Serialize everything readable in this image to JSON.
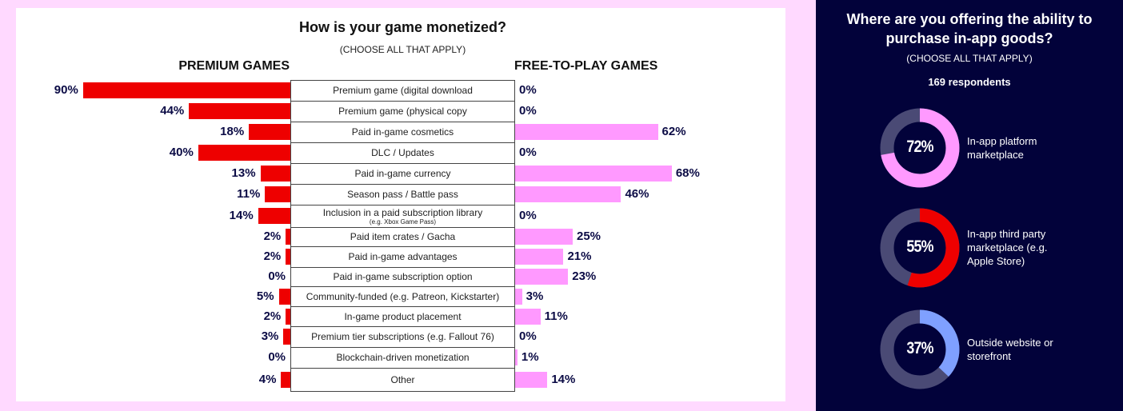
{
  "chart_data": [
    {
      "type": "bar",
      "title": "How is your game monetized?",
      "subtitle": "(CHOOSE ALL THAT APPLY)",
      "series": [
        {
          "name": "PREMIUM GAMES",
          "color": "#EE0000",
          "values": [
            90,
            44,
            18,
            40,
            13,
            11,
            14,
            2,
            2,
            0,
            5,
            2,
            3,
            0,
            4
          ],
          "labels": [
            "90%",
            "44%",
            "18%",
            "40%",
            "13%",
            "11%",
            "14%",
            "2%",
            "2%",
            "0%",
            "5%",
            "2%",
            "3%",
            "0%",
            "4%"
          ]
        },
        {
          "name": "FREE-TO-PLAY GAMES",
          "color": "#FF99FF",
          "values": [
            0,
            0,
            62,
            0,
            68,
            46,
            0,
            25,
            21,
            23,
            3,
            11,
            0,
            1,
            14
          ],
          "labels": [
            "0%",
            "0%",
            "62%",
            "0%",
            "68%",
            "46%",
            "0%",
            "25%",
            "21%",
            "23%",
            "3%",
            "11%",
            "0%",
            "1%",
            "14%"
          ]
        }
      ],
      "categories": [
        "Premium game (digital download",
        "Premium game (physical copy",
        "Paid in-game cosmetics",
        "DLC / Updates",
        "Paid in-game currency",
        "Season pass / Battle pass",
        "Inclusion in a paid subscription library",
        "Paid item crates / Gacha",
        "Paid in-game advantages",
        "Paid in-game subscription option",
        "Community-funded (e.g. Patreon, Kickstarter)",
        "In-game product placement",
        "Premium tier subscriptions (e.g. Fallout 76)",
        "Blockchain-driven monetization",
        "Other"
      ],
      "category_notes": {
        "6": "(e.g. Xbox Game Pass)"
      },
      "xlim": [
        0,
        100
      ]
    },
    {
      "type": "pie",
      "title": "Where are you offering the ability to purchase in-app goods?",
      "subtitle": "(CHOOSE ALL THAT APPLY)",
      "respondents": "169 respondents",
      "items": [
        {
          "label": "In-app platform marketplace",
          "value": 72,
          "text": "72%",
          "color": "#FF99FF"
        },
        {
          "label": "In-app third party marketplace (e.g. Apple Store)",
          "value": 55,
          "text": "55%",
          "color": "#EE0000"
        },
        {
          "label": "Outside website or storefront",
          "value": 37,
          "text": "37%",
          "color": "#7FA0FF"
        }
      ],
      "track_color": "#4A4A75"
    }
  ]
}
